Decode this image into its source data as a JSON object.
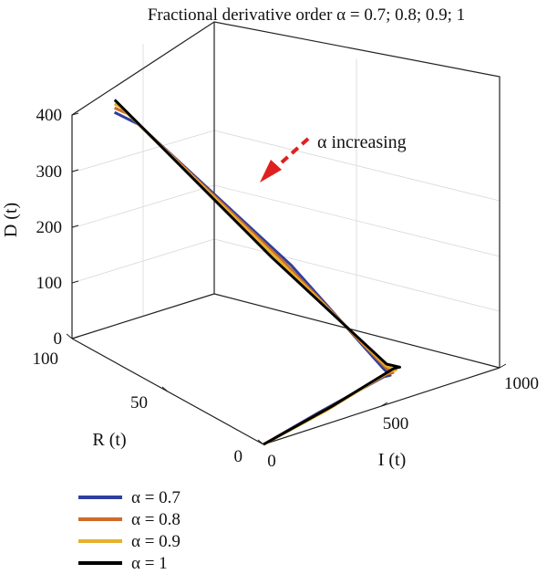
{
  "chart_data": {
    "type": "line",
    "projection": "3d",
    "title": "Fractional derivative order α = 0.7; 0.8; 0.9; 1",
    "xlabel": "I (t)",
    "ylabel": "R (t)",
    "zlabel": "D (t)",
    "xlim": [
      0,
      1000
    ],
    "ylim": [
      0,
      100
    ],
    "zlim": [
      0,
      400
    ],
    "x_ticks": [
      "0",
      "500",
      "1000"
    ],
    "y_ticks": [
      "0",
      "50",
      "100"
    ],
    "z_ticks": [
      "0",
      "100",
      "200",
      "300",
      "400"
    ],
    "grid": true,
    "legend_position": "bottom-left",
    "annotation": {
      "text": "α increasing",
      "arrow_color": "#e02020"
    },
    "series": [
      {
        "name": "α = 0.7",
        "color": "#2e3f9e",
        "points": [
          [
            0,
            0,
            0
          ],
          [
            300,
            8,
            1
          ],
          [
            640,
            16,
            3
          ],
          [
            650,
            14,
            8
          ],
          [
            605,
            12,
            30
          ],
          [
            400,
            35,
            200
          ],
          [
            200,
            90,
            375
          ],
          [
            180,
            100,
            380
          ]
        ]
      },
      {
        "name": "α = 0.8",
        "color": "#cf6a2a",
        "points": [
          [
            0,
            0,
            0
          ],
          [
            320,
            8,
            1
          ],
          [
            660,
            17,
            3
          ],
          [
            670,
            15,
            8
          ],
          [
            615,
            12,
            30
          ],
          [
            395,
            38,
            200
          ],
          [
            195,
            95,
            385
          ],
          [
            180,
            100,
            388
          ]
        ]
      },
      {
        "name": "α = 0.9",
        "color": "#e6b12c",
        "points": [
          [
            0,
            0,
            0
          ],
          [
            340,
            8,
            1
          ],
          [
            680,
            18,
            3
          ],
          [
            690,
            16,
            8
          ],
          [
            625,
            13,
            30
          ],
          [
            390,
            40,
            200
          ],
          [
            190,
            98,
            392
          ],
          [
            180,
            100,
            395
          ]
        ]
      },
      {
        "name": "α = 1",
        "color": "#000000",
        "points": [
          [
            0,
            0,
            0
          ],
          [
            360,
            9,
            1
          ],
          [
            705,
            19,
            3
          ],
          [
            715,
            17,
            8
          ],
          [
            635,
            14,
            30
          ],
          [
            385,
            43,
            200
          ],
          [
            185,
            100,
            400
          ],
          [
            180,
            100,
            402
          ]
        ]
      }
    ]
  }
}
